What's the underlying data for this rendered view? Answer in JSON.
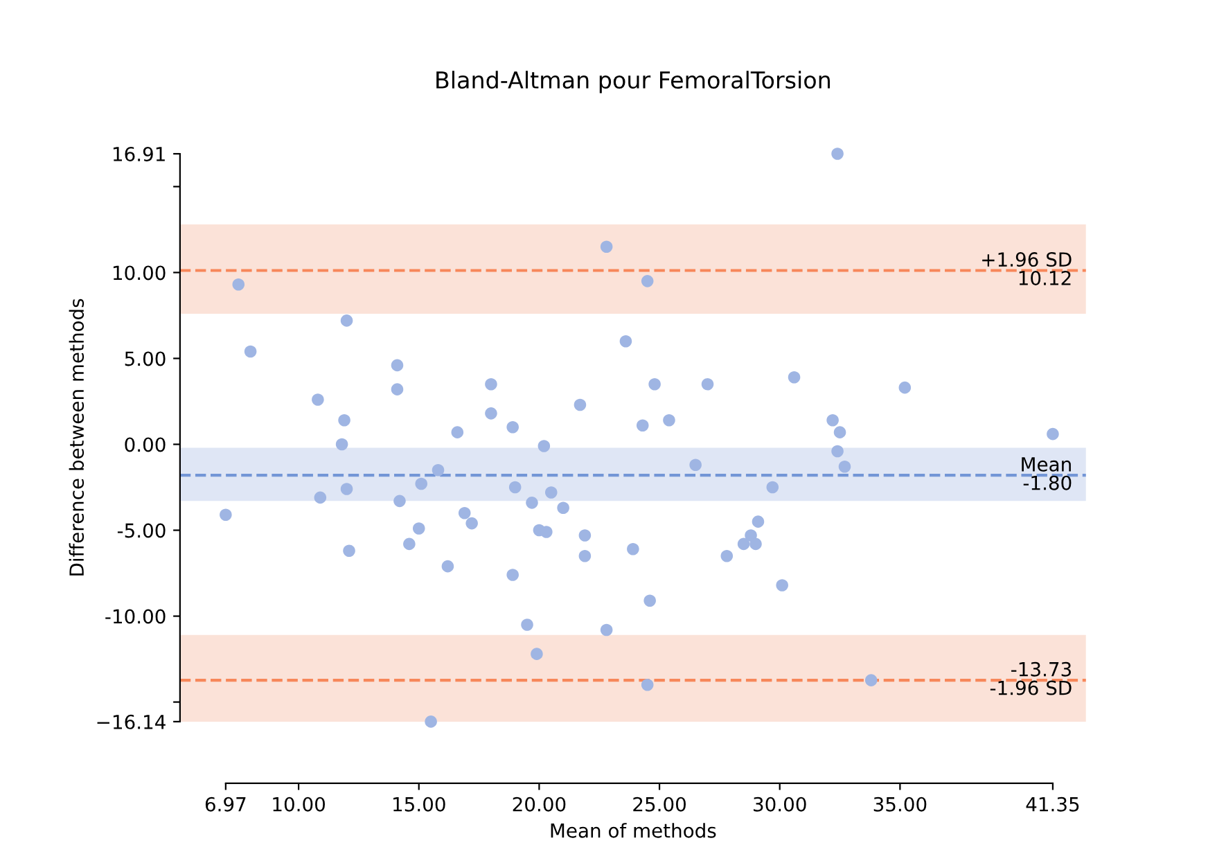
{
  "chart_data": {
    "type": "scatter",
    "title": "Bland-Altman pour FemoralTorsion",
    "xlabel": "Mean of methods",
    "ylabel": "Difference between methods",
    "series": [
      {
        "color": "#9fb5e3",
        "x": [
          7.5,
          8.0,
          22.8,
          12.0,
          23.6,
          14.1,
          14.1,
          10.8,
          18.0,
          11.9,
          18.0,
          21.7,
          16.6,
          18.9,
          11.8,
          20.2,
          32.4,
          24.5,
          24.8,
          27.0,
          30.6,
          35.2,
          24.3,
          25.4,
          32.2,
          32.5,
          41.35,
          32.4,
          15.8,
          15.1,
          12.0,
          10.9,
          6.97,
          14.2,
          19.0,
          19.7,
          20.5,
          21.0,
          16.9,
          17.2,
          15.0,
          14.6,
          20.0,
          20.3,
          21.9,
          21.9,
          12.1,
          23.9,
          16.2,
          18.9,
          19.5,
          22.8,
          19.9,
          15.5,
          32.7,
          26.5,
          29.7,
          29.1,
          28.8,
          28.5,
          29.0,
          27.8,
          30.1,
          24.6,
          24.5,
          33.8
        ],
        "values": [
          9.3,
          5.4,
          11.5,
          7.2,
          6.0,
          4.6,
          3.2,
          2.6,
          3.5,
          1.4,
          1.8,
          2.3,
          0.7,
          1.0,
          0.0,
          -0.1,
          16.91,
          9.5,
          3.5,
          3.5,
          3.9,
          3.3,
          1.1,
          1.4,
          1.4,
          0.7,
          0.6,
          -0.4,
          -1.5,
          -2.3,
          -2.6,
          -3.1,
          -4.1,
          -3.3,
          -2.5,
          -3.4,
          -2.8,
          -3.7,
          -4.0,
          -4.6,
          -4.9,
          -5.8,
          -5.0,
          -5.1,
          -5.3,
          -6.5,
          -6.2,
          -6.1,
          -7.1,
          -7.6,
          -10.5,
          -10.8,
          -12.2,
          -16.14,
          -1.3,
          -1.2,
          -2.5,
          -4.5,
          -5.3,
          -5.8,
          -5.8,
          -6.5,
          -8.2,
          -9.1,
          -14.0,
          -13.73
        ]
      }
    ],
    "marker": "circle",
    "xlim": [
      5.07,
      42.73
    ],
    "ylim": [
      -16.14,
      16.91
    ],
    "xticks": [
      {
        "value": 6.97,
        "label": "6.97"
      },
      {
        "value": 10,
        "label": "10.00"
      },
      {
        "value": 15,
        "label": "15.00"
      },
      {
        "value": 20,
        "label": "20.00"
      },
      {
        "value": 25,
        "label": "25.00"
      },
      {
        "value": 30,
        "label": "30.00"
      },
      {
        "value": 35,
        "label": "35.00"
      },
      {
        "value": 41.35,
        "label": "41.35"
      }
    ],
    "yticks": [
      {
        "value": -16.14,
        "label": "−16.14"
      },
      {
        "value": -15,
        "label": null
      },
      {
        "value": -10,
        "label": "-10.00"
      },
      {
        "value": -5,
        "label": "-5.00"
      },
      {
        "value": 0,
        "label": "0.00"
      },
      {
        "value": 5,
        "label": "5.00"
      },
      {
        "value": 10,
        "label": "10.00"
      },
      {
        "value": 15,
        "label": null
      },
      {
        "value": 16.91,
        "label": "16.91"
      }
    ],
    "ref_lines": [
      {
        "axis": "y",
        "value": 10.12,
        "label": "+1.96 SD",
        "color": "#f7875a",
        "line_style": "dashed"
      },
      {
        "axis": "y",
        "value": -1.8,
        "label": "Mean",
        "color": "#7396d6",
        "line_style": "dashed"
      },
      {
        "axis": "y",
        "value": -13.73,
        "label": "-1.96 SD",
        "color": "#f7875a",
        "line_style": "dashed"
      }
    ],
    "annotations": [
      {
        "text": "10.12",
        "y": 10.12
      },
      {
        "text": "-1.80",
        "y": -1.8
      },
      {
        "text": "-13.73",
        "y": -13.73
      }
    ],
    "bands": [
      {
        "axis": "y",
        "from": 7.6,
        "to": 12.8,
        "color": "#fbe2d8"
      },
      {
        "axis": "y",
        "from": -3.3,
        "to": -0.2,
        "color": "#dfe6f5"
      },
      {
        "axis": "y",
        "from": -16.14,
        "to": -11.1,
        "color": "#fbe2d8"
      }
    ],
    "grid": false,
    "legend": false
  }
}
